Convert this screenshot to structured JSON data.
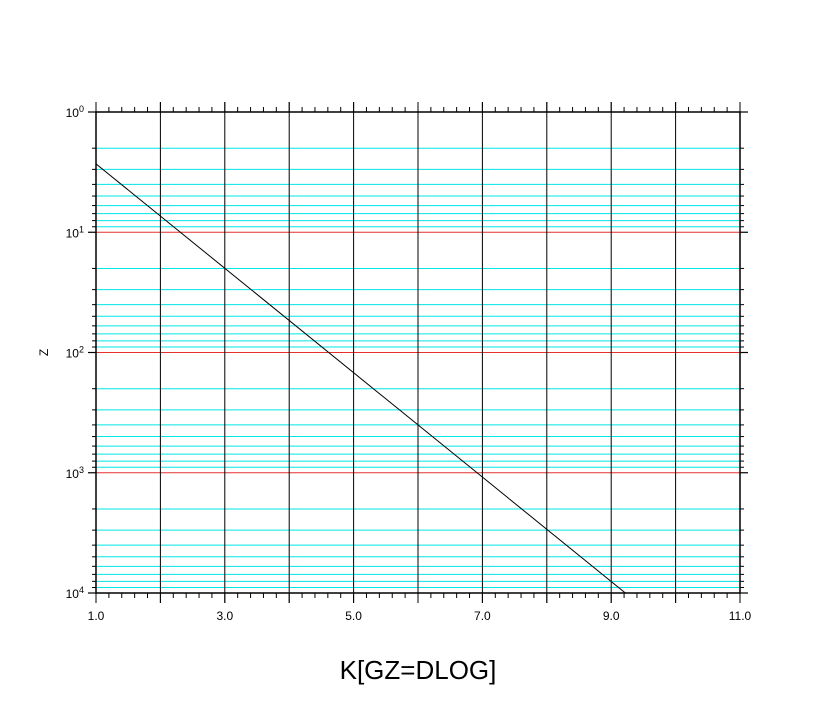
{
  "chart_data": {
    "type": "line",
    "title": "",
    "xlabel": "K[GZ=DLOG]",
    "ylabel": "Z",
    "x_range": [
      1.0,
      11.0
    ],
    "y_range": [
      1,
      10000
    ],
    "y_scale": "log",
    "y_inverted": true,
    "grid": true,
    "x_tick_labels": [
      "1.0",
      "3.0",
      "5.0",
      "7.0",
      "9.0",
      "11.0"
    ],
    "x_tick_values": [
      1,
      3,
      5,
      7,
      9,
      11
    ],
    "y_ticks": [
      {
        "value": 1,
        "base": "10",
        "exp": "0"
      },
      {
        "value": 10,
        "base": "10",
        "exp": "1"
      },
      {
        "value": 100,
        "base": "10",
        "exp": "2"
      },
      {
        "value": 1000,
        "base": "10",
        "exp": "3"
      },
      {
        "value": 10000,
        "base": "10",
        "exp": "4"
      }
    ],
    "series": [
      {
        "x": [
          1.0,
          9.22
        ],
        "y": [
          2.7,
          10000
        ]
      }
    ],
    "colors": {
      "major_y_grid": "#e53030",
      "minor_y_grid": "#00e5e5",
      "x_grid": "#000000",
      "line": "#000000"
    }
  }
}
